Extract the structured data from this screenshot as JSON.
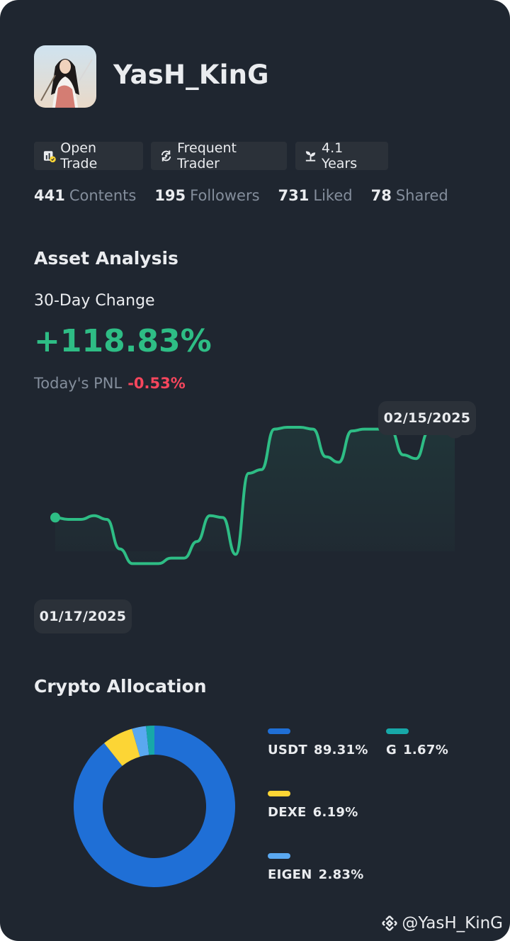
{
  "profile": {
    "username": "YasH_KinG",
    "tags": [
      {
        "label": "Open Trade",
        "icon": "open-trade-icon"
      },
      {
        "label": "Frequent Trader",
        "icon": "frequent-trader-icon"
      },
      {
        "label": "4.1 Years",
        "icon": "sprout-icon"
      }
    ],
    "stats": [
      {
        "value": "441",
        "label": "Contents"
      },
      {
        "value": "195",
        "label": "Followers"
      },
      {
        "value": "731",
        "label": "Liked"
      },
      {
        "value": "78",
        "label": "Shared"
      }
    ]
  },
  "asset_analysis": {
    "title": "Asset Analysis",
    "change_label": "30-Day Change",
    "change_value": "+118.83%",
    "pnl_label": "Today's PNL",
    "pnl_value": "-0.53%",
    "start_date": "01/17/2025",
    "end_date": "02/15/2025"
  },
  "chart_data": {
    "type": "line",
    "x_range": [
      "01/17/2025",
      "02/15/2025"
    ],
    "grid": "vertical",
    "series": [
      {
        "color": "#2ebd85",
        "values": [
          0.46,
          0.45,
          0.45,
          0.47,
          0.45,
          0.29,
          0.21,
          0.21,
          0.21,
          0.24,
          0.24,
          0.33,
          0.47,
          0.46,
          0.26,
          0.7,
          0.72,
          0.94,
          0.95,
          0.95,
          0.94,
          0.79,
          0.76,
          0.93,
          0.94,
          0.94,
          0.94,
          0.8,
          0.78,
          0.93,
          0.94,
          0.94
        ]
      }
    ]
  },
  "crypto_allocation": {
    "title": "Crypto Allocation",
    "chart_data": {
      "type": "pie",
      "slices": [
        {
          "label": "USDT",
          "value": 89.31,
          "pct": "89.31%",
          "color": "#1f6fd6"
        },
        {
          "label": "DEXE",
          "value": 6.19,
          "pct": "6.19%",
          "color": "#fcd535"
        },
        {
          "label": "EIGEN",
          "value": 2.83,
          "pct": "2.83%",
          "color": "#5aa8f0"
        },
        {
          "label": "G",
          "value": 1.67,
          "pct": "1.67%",
          "color": "#17a8a8"
        }
      ]
    }
  },
  "watermark": {
    "handle": "@YasH_KinG",
    "icon": "binance-logo-icon"
  }
}
